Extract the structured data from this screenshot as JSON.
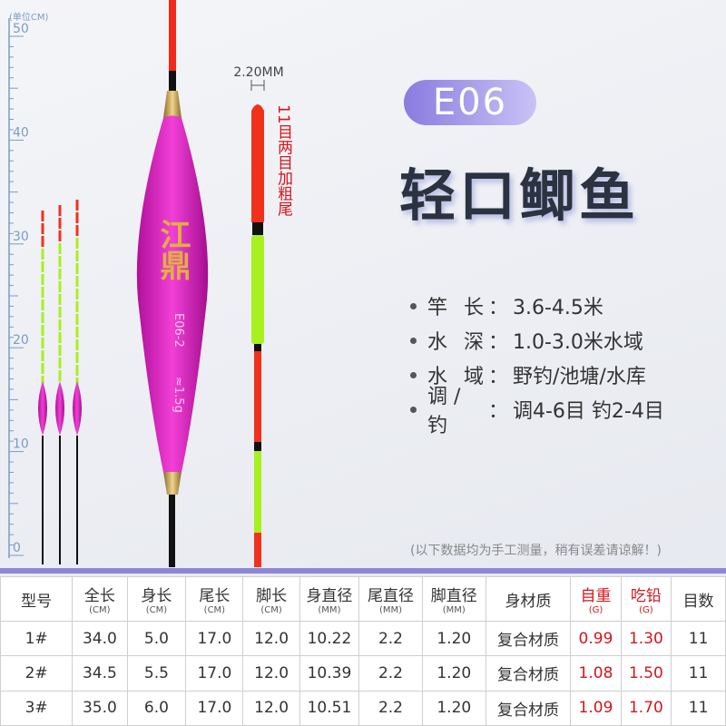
{
  "ruler": {
    "unit": "(单位CM)",
    "labels": [
      "50",
      "40",
      "30",
      "20",
      "10",
      "0"
    ]
  },
  "float_body": {
    "brand": "江鼎",
    "model": "E06-2",
    "weight": "≈1.5g"
  },
  "tail": {
    "diameter": "2.20MM",
    "note": "11目两目加粗尾"
  },
  "badge": "E06",
  "title": "轻口鲫鱼",
  "specs": {
    "colon": "：",
    "items": [
      {
        "label": "竿 长",
        "value": "3.6-4.5米"
      },
      {
        "label": "水 深",
        "value": "1.0-3.0米水域"
      },
      {
        "label": "水 域",
        "value": "野钓/池塘/水库"
      },
      {
        "label": "调 / 钓",
        "value": "调4-6目 钓2-4目"
      }
    ]
  },
  "note": "(以下数据均为手工测量，稍有误差请谅解！)",
  "table": {
    "headers": [
      {
        "name": "型号"
      },
      {
        "name": "全长",
        "unit": "(CM)"
      },
      {
        "name": "身长",
        "unit": "(CM)"
      },
      {
        "name": "尾长",
        "unit": "(CM)"
      },
      {
        "name": "脚长",
        "unit": "(CM)"
      },
      {
        "name": "身直径",
        "unit": "(MM)"
      },
      {
        "name": "尾直径",
        "unit": "(MM)"
      },
      {
        "name": "脚直径",
        "unit": "(MM)"
      },
      {
        "name": "身材质"
      },
      {
        "name": "自重",
        "unit": "(G)"
      },
      {
        "name": "吃铅",
        "unit": "(G)"
      },
      {
        "name": "目数"
      }
    ],
    "rows": [
      [
        "1#",
        "34.0",
        "5.0",
        "17.0",
        "12.0",
        "10.22",
        "2.2",
        "1.20",
        "复合材质",
        "0.99",
        "1.30",
        "11"
      ],
      [
        "2#",
        "34.5",
        "5.5",
        "17.0",
        "12.0",
        "10.39",
        "2.2",
        "1.20",
        "复合材质",
        "1.08",
        "1.50",
        "11"
      ],
      [
        "3#",
        "35.0",
        "6.0",
        "17.0",
        "12.0",
        "10.51",
        "2.2",
        "1.20",
        "复合材质",
        "1.09",
        "1.70",
        "11"
      ]
    ]
  }
}
